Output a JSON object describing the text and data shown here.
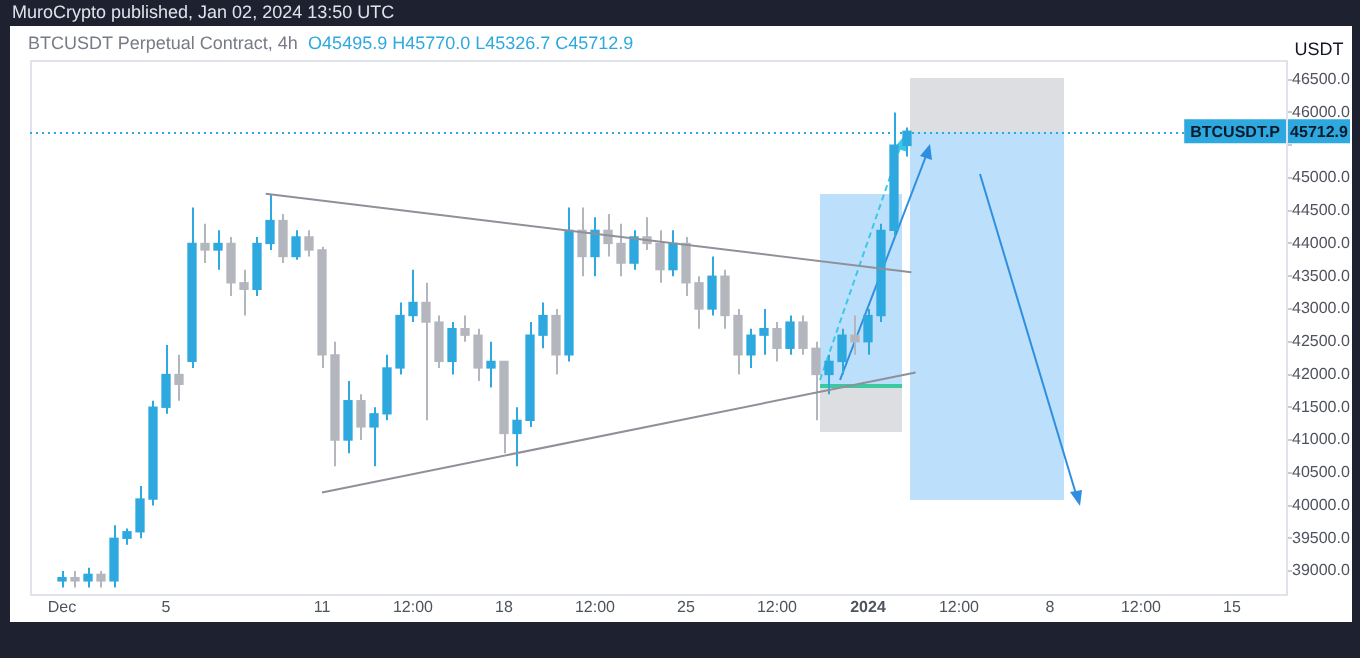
{
  "chart_data": {
    "type": "candlestick",
    "title": "BTCUSDT Perpetual Contract, 4h",
    "subtitle": "O45495.9 H45770.0 L45326.7 C45712.9",
    "ylabel": "USDT",
    "annotations": [
      "MuroCrypto published, Jan 02, 2024 13:50 UTC",
      {
        "text": "45712.9",
        "y": 45712.9
      }
    ],
    "ref_lines": [
      {
        "axis": "y",
        "value": 45712.9,
        "label": "BTCUSDT.P",
        "color": "#2ea9df"
      }
    ],
    "xlim": [
      "2023-11-29T18:28",
      "2024-01-17T01:51"
    ],
    "xticks": [
      {
        "value": "2023-12-01",
        "label": "Dec"
      },
      {
        "value": "2023-12-05",
        "label": "5"
      },
      {
        "value": "2023-12-11",
        "label": "11"
      },
      {
        "value": "2023-12-14T12:00",
        "label": "12:00"
      },
      {
        "value": "2023-12-18",
        "label": "18"
      },
      {
        "value": "2023-12-21T12:00",
        "label": "12:00"
      },
      {
        "value": "2023-12-25",
        "label": "25"
      },
      {
        "value": "2023-12-28T12:00",
        "label": "12:00"
      },
      {
        "value": "2024-01-01",
        "label": "2024"
      },
      {
        "value": "2024-01-04T12:00",
        "label": "12:00"
      },
      {
        "value": "2024-01-08",
        "label": "8"
      },
      {
        "value": "2024-01-11T12:00",
        "label": "12:00"
      },
      {
        "value": "2024-01-15",
        "label": "15"
      }
    ],
    "ylim": [
      38650,
      46800
    ],
    "yticks": [
      {
        "value": 39000,
        "label": "39000.0"
      },
      {
        "value": 39500,
        "label": "39500.0"
      },
      {
        "value": 40000,
        "label": "40000.0"
      },
      {
        "value": 40500,
        "label": "40500.0"
      },
      {
        "value": 41000,
        "label": "41000.0"
      },
      {
        "value": 41500,
        "label": "41500.0"
      },
      {
        "value": 42000,
        "label": "42000.0"
      },
      {
        "value": 42500,
        "label": "42500.0"
      },
      {
        "value": 43000,
        "label": "43000.0"
      },
      {
        "value": 43500,
        "label": "43500.0"
      },
      {
        "value": 44000,
        "label": "44000.0"
      },
      {
        "value": 44500,
        "label": "44500.0"
      },
      {
        "value": 45000,
        "label": "45000.0"
      },
      {
        "value": 45500,
        "label": null
      },
      {
        "value": 46000,
        "label": "46000.0"
      },
      {
        "value": 46500,
        "label": "46500.0"
      }
    ],
    "grid": false,
    "legend": false,
    "series": [
      {
        "type": "candlestick",
        "color": "#2ea9df",
        "x": [
          "2023-12-01T00:00",
          "2023-12-02T00:00",
          "2023-12-03T00:00",
          "2023-12-03T12:00",
          "2023-12-04T00:00",
          "2023-12-04T12:00",
          "2023-12-05T00:00",
          "2023-12-06T00:00",
          "2023-12-07T00:00",
          "2023-12-08T12:00",
          "2023-12-09T00:00",
          "2023-12-10T00:00",
          "2023-12-12T00:00",
          "2023-12-13T00:00",
          "2023-12-13T12:00",
          "2023-12-14T00:00",
          "2023-12-14T12:00",
          "2023-12-16T00:00",
          "2023-12-17T12:00",
          "2023-12-18T12:00",
          "2023-12-19T00:00",
          "2023-12-19T12:00",
          "2023-12-20T12:00",
          "2023-12-21T12:00",
          "2023-12-23T00:00",
          "2023-12-24T12:00",
          "2023-12-26T00:00",
          "2023-12-27T12:00",
          "2023-12-28T00:00",
          "2023-12-29T00:00",
          "2023-12-30T12:00",
          "2023-12-31T00:00",
          "2024-01-01T00:00",
          "2024-01-01T12:00",
          "2024-01-02T00:00",
          "2024-01-02T12:00"
        ],
        "ohlc": [
          [
            38850,
            39000,
            38750,
            38900
          ],
          [
            38850,
            39050,
            38750,
            38950
          ],
          [
            38850,
            39700,
            38750,
            39500
          ],
          [
            39500,
            39650,
            39400,
            39600
          ],
          [
            39600,
            40300,
            39500,
            40100
          ],
          [
            40100,
            41600,
            40000,
            41500
          ],
          [
            41500,
            42450,
            41400,
            42000
          ],
          [
            42200,
            44550,
            42100,
            44000
          ],
          [
            43900,
            44200,
            43600,
            44000
          ],
          [
            43300,
            44100,
            43200,
            44000
          ],
          [
            44000,
            44750,
            43900,
            44350
          ],
          [
            43800,
            44200,
            43750,
            44100
          ],
          [
            41000,
            41900,
            40800,
            41600
          ],
          [
            41200,
            41500,
            40600,
            41400
          ],
          [
            41400,
            42300,
            41300,
            42100
          ],
          [
            42100,
            43100,
            42000,
            42900
          ],
          [
            42900,
            43600,
            42800,
            43100
          ],
          [
            42200,
            42800,
            42000,
            42700
          ],
          [
            42100,
            42500,
            41800,
            42200
          ],
          [
            41100,
            41500,
            40600,
            41300
          ],
          [
            41300,
            42800,
            41200,
            42600
          ],
          [
            42600,
            43100,
            42400,
            42900
          ],
          [
            42300,
            44550,
            42200,
            44200
          ],
          [
            43800,
            44400,
            43500,
            44200
          ],
          [
            43700,
            44200,
            43600,
            44100
          ],
          [
            43600,
            44200,
            43500,
            44000
          ],
          [
            43000,
            43800,
            42900,
            43500
          ],
          [
            42300,
            42700,
            42100,
            42600
          ],
          [
            42600,
            43000,
            42300,
            42700
          ],
          [
            42400,
            42900,
            42300,
            42800
          ],
          [
            42000,
            42300,
            41700,
            42200
          ],
          [
            42200,
            42700,
            42000,
            42600
          ],
          [
            42500,
            43000,
            42300,
            42900
          ],
          [
            42900,
            44300,
            42800,
            44200
          ],
          [
            44200,
            46000,
            44100,
            45500
          ],
          [
            45495.9,
            45770.0,
            45326.7,
            45712.9
          ]
        ]
      },
      {
        "type": "candlestick",
        "color": "#b4b6be",
        "x": [
          "2023-12-01T12:00",
          "2023-12-02T12:00",
          "2023-12-05T12:00",
          "2023-12-06T12:00",
          "2023-12-07T12:00",
          "2023-12-08T00:00",
          "2023-12-09T12:00",
          "2023-12-10T12:00",
          "2023-12-11T00:00",
          "2023-12-11T12:00",
          "2023-12-12T12:00",
          "2023-12-15T00:00",
          "2023-12-15T12:00",
          "2023-12-16T12:00",
          "2023-12-17T00:00",
          "2023-12-18T00:00",
          "2023-12-20T00:00",
          "2023-12-21T00:00",
          "2023-12-22T00:00",
          "2023-12-22T12:00",
          "2023-12-23T12:00",
          "2023-12-24T00:00",
          "2023-12-25T00:00",
          "2023-12-25T12:00",
          "2023-12-26T12:00",
          "2023-12-27T00:00",
          "2023-12-28T12:00",
          "2023-12-29T12:00",
          "2023-12-30T00:00",
          "2023-12-31T12:00"
        ],
        "ohlc": [
          [
            38900,
            39000,
            38750,
            38850
          ],
          [
            38950,
            39000,
            38750,
            38850
          ],
          [
            42000,
            42300,
            41600,
            41850
          ],
          [
            44000,
            44300,
            43700,
            43900
          ],
          [
            44000,
            44100,
            43200,
            43400
          ],
          [
            43400,
            43600,
            42900,
            43300
          ],
          [
            44350,
            44450,
            43700,
            43800
          ],
          [
            44100,
            44200,
            43800,
            43900
          ],
          [
            43900,
            43950,
            42100,
            42300
          ],
          [
            42300,
            42500,
            40600,
            41000
          ],
          [
            41600,
            41700,
            41000,
            41200
          ],
          [
            43100,
            43400,
            41300,
            42800
          ],
          [
            42800,
            42900,
            42100,
            42200
          ],
          [
            42700,
            42900,
            42500,
            42600
          ],
          [
            42600,
            42700,
            41900,
            42100
          ],
          [
            42200,
            42200,
            40800,
            41100
          ],
          [
            42900,
            43000,
            42000,
            42300
          ],
          [
            44200,
            44550,
            43500,
            43800
          ],
          [
            44200,
            44450,
            43800,
            44000
          ],
          [
            44000,
            44300,
            43500,
            43700
          ],
          [
            44100,
            44400,
            43900,
            44000
          ],
          [
            44000,
            44200,
            43400,
            43600
          ],
          [
            44000,
            44100,
            43200,
            43400
          ],
          [
            43400,
            43500,
            42700,
            43000
          ],
          [
            43500,
            43600,
            42700,
            42900
          ],
          [
            42900,
            43000,
            42000,
            42300
          ],
          [
            42700,
            42800,
            42200,
            42400
          ],
          [
            42800,
            42900,
            42300,
            42400
          ],
          [
            42400,
            42500,
            41300,
            42000
          ],
          [
            42600,
            42900,
            42300,
            42500
          ]
        ]
      },
      {
        "type": "line",
        "color": "#8f9098",
        "x": [
          "2023-12-08T20:00",
          "2024-01-02T16:00"
        ],
        "values": [
          44760,
          43560
        ]
      },
      {
        "type": "line",
        "color": "#8f9098",
        "x": [
          "2023-12-11T00:00",
          "2024-01-02T20:00"
        ],
        "values": [
          40200,
          42030
        ]
      }
    ],
    "marker": "none"
  }
}
